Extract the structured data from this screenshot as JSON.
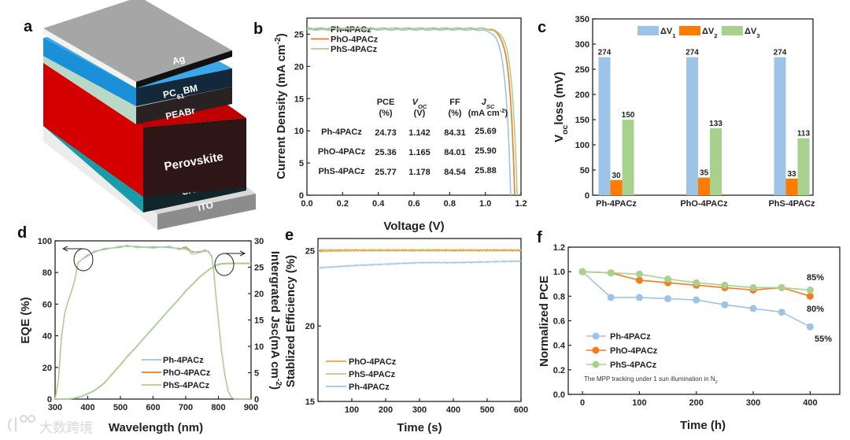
{
  "panel_labels": [
    "a",
    "b",
    "c",
    "d",
    "e",
    "f"
  ],
  "device_stack": {
    "layers": [
      {
        "name": "ITO",
        "color": "#8c8c8c"
      },
      {
        "name": "SAM",
        "color": "#1a9ba8"
      },
      {
        "name": "Perovskite",
        "color": "#d40000"
      },
      {
        "name": "PEABr",
        "color": "#b9d8c8"
      },
      {
        "name": "PC",
        "sub": "61",
        "tail": "BM",
        "color": "#1a90d8"
      },
      {
        "name": "Ag",
        "color": "#a6a6a6"
      }
    ]
  },
  "chart_data": [
    {
      "panel": "b",
      "type": "line",
      "title": "",
      "xlabel": "Voltage (V)",
      "ylabel": {
        "text": "Current Density (mA cm",
        "sup": "-2",
        "close": ")"
      },
      "xlim": [
        0,
        1.2
      ],
      "ylim": [
        0,
        27.5
      ],
      "xticks": [
        "0.0",
        "0.2",
        "0.4",
        "0.6",
        "0.8",
        "1.0",
        "1.2"
      ],
      "yticks": [
        "0",
        "5",
        "10",
        "15",
        "20",
        "25"
      ],
      "legend_position": "top-left",
      "series": [
        {
          "name": "Ph-4PACz",
          "color": "#9dc3e6",
          "voc": 1.142,
          "jsc": 25.69
        },
        {
          "name": "PhO-4PACz",
          "color": "#f07b1c",
          "voc": 1.165,
          "jsc": 25.9
        },
        {
          "name": "PhS-4PACz",
          "color": "#a9d18e",
          "voc": 1.178,
          "jsc": 25.88
        }
      ],
      "table": {
        "headers": [
          {
            "main": "PCE",
            "unit": "(%)"
          },
          {
            "main": "V",
            "sub": "OC",
            "unit": "(V)"
          },
          {
            "main": "FF",
            "unit": "(%)"
          },
          {
            "main": "J",
            "sub": "SC",
            "unit": "(mA cm",
            "unit_sup": "-2",
            "unit_close": ")"
          }
        ],
        "rows": [
          {
            "label": "Ph-4PACz",
            "values": [
              "24.73",
              "1.142",
              "84.31",
              "25.69"
            ]
          },
          {
            "label": "PhO-4PACz",
            "values": [
              "25.36",
              "1.165",
              "84.01",
              "25.90"
            ]
          },
          {
            "label": "PhS-4PACz",
            "values": [
              "25.77",
              "1.178",
              "84.54",
              "25.88"
            ]
          }
        ]
      }
    },
    {
      "panel": "c",
      "type": "bar",
      "title": "",
      "xlabel": "",
      "ylabel": {
        "text": "V",
        "sub": "oc",
        "tail": "loss (mV)"
      },
      "ylim": [
        0,
        350
      ],
      "yticks": [
        "0",
        "50",
        "100",
        "150",
        "200",
        "250",
        "300",
        "350"
      ],
      "categories": [
        "Ph-4PACz",
        "PhO-4PACz",
        "PhS-4PACz"
      ],
      "legend_position": "top-center",
      "series": [
        {
          "name": "ΔV",
          "sub": "1",
          "color": "#9dc3e6",
          "values": [
            274,
            274,
            274
          ],
          "labels": [
            "274",
            "274",
            "274"
          ]
        },
        {
          "name": "ΔV",
          "sub": "2",
          "color": "#ff7c00",
          "values": [
            30,
            35,
            33
          ],
          "labels": [
            "30",
            "35",
            "33"
          ]
        },
        {
          "name": "ΔV",
          "sub": "3",
          "color": "#a9d18e",
          "values": [
            150,
            133,
            113
          ],
          "labels": [
            "150",
            "133",
            "113"
          ]
        }
      ]
    },
    {
      "panel": "d",
      "type": "line",
      "title": "",
      "xlabel": "Wavelength (nm)",
      "ylabel": "EQE (%)",
      "ylabel_right": {
        "text": "Intergrated Jsc(mA cm",
        "sup": "-2",
        "close": ")"
      },
      "xlim": [
        300,
        900
      ],
      "ylim": [
        0,
        100
      ],
      "ylim_right": [
        0,
        30
      ],
      "xticks": [
        "300",
        "400",
        "500",
        "600",
        "700",
        "800",
        "900"
      ],
      "yticks": [
        "0",
        "20",
        "40",
        "60",
        "80",
        "100"
      ],
      "yticks_right": [
        "0",
        "5",
        "10",
        "15",
        "20",
        "25",
        "30"
      ],
      "legend_position": "bottom-center",
      "x": [
        300,
        310,
        320,
        330,
        340,
        350,
        360,
        370,
        380,
        400,
        420,
        450,
        500,
        520,
        550,
        600,
        650,
        680,
        700,
        720,
        740,
        760,
        770,
        780,
        785,
        790,
        800,
        810,
        820,
        830,
        840,
        850,
        900
      ],
      "series": [
        {
          "name": "Ph-4PACz",
          "color": "#9dc3e6",
          "eqe": [
            0,
            12,
            40,
            55,
            62,
            68,
            75,
            86,
            88,
            91,
            93,
            95,
            96,
            97,
            96,
            96,
            96,
            95,
            95,
            93,
            93,
            94,
            93,
            90,
            82,
            70,
            50,
            30,
            15,
            5,
            1,
            0,
            0
          ],
          "jsc_int": [
            0,
            0,
            0,
            0,
            0.05,
            0.1,
            0.2,
            0.35,
            0.5,
            1.0,
            1.6,
            3.0,
            6.5,
            8.0,
            10.0,
            13.5,
            17.0,
            19.0,
            20.5,
            21.7,
            23.0,
            24.0,
            24.5,
            24.9,
            25.1,
            25.3,
            25.5,
            25.6,
            25.65,
            25.7,
            25.7,
            25.7,
            25.7
          ]
        },
        {
          "name": "PhO-4PACz",
          "color": "#f07b1c",
          "eqe": [
            0,
            12,
            40,
            55,
            62,
            68,
            75,
            86,
            88,
            91,
            93,
            95,
            96,
            97,
            96,
            96,
            96,
            95,
            96,
            93,
            93,
            94,
            93,
            90,
            82,
            70,
            50,
            30,
            15,
            5,
            1,
            0,
            0
          ],
          "jsc_int": [
            0,
            0,
            0,
            0,
            0.05,
            0.1,
            0.2,
            0.35,
            0.5,
            1.0,
            1.6,
            3.0,
            6.5,
            8.0,
            10.0,
            13.5,
            17.0,
            19.0,
            20.5,
            21.7,
            23.0,
            24.0,
            24.5,
            24.9,
            25.1,
            25.3,
            25.55,
            25.65,
            25.7,
            25.75,
            25.75,
            25.75,
            25.75
          ]
        },
        {
          "name": "PhS-4PACz",
          "color": "#a9d18e",
          "eqe": [
            0,
            12,
            40,
            55,
            62,
            68,
            75,
            86,
            88,
            91,
            93,
            95,
            96,
            97,
            96,
            96,
            96,
            95,
            95,
            92,
            92,
            94,
            93,
            90,
            82,
            70,
            50,
            30,
            15,
            5,
            1,
            0,
            0
          ],
          "jsc_int": [
            0,
            0,
            0,
            0,
            0.05,
            0.1,
            0.2,
            0.35,
            0.5,
            1.0,
            1.6,
            3.0,
            6.5,
            8.0,
            10.0,
            13.5,
            17.0,
            19.0,
            20.5,
            21.7,
            23.0,
            24.0,
            24.5,
            24.9,
            25.1,
            25.3,
            25.5,
            25.6,
            25.65,
            25.7,
            25.7,
            25.7,
            25.7
          ]
        }
      ]
    },
    {
      "panel": "e",
      "type": "line",
      "title": "",
      "xlabel": "Time (s)",
      "ylabel": "Stablized Efficiency (%)",
      "xlim": [
        0,
        600
      ],
      "ylim": [
        15,
        25.8
      ],
      "xticks": [
        "100",
        "200",
        "300",
        "400",
        "500",
        "600"
      ],
      "yticks": [
        "15",
        "20",
        "25"
      ],
      "legend_position": "bottom-left",
      "x": [
        0,
        100,
        200,
        300,
        400,
        500,
        600
      ],
      "series": [
        {
          "name": "PhO-4PACz",
          "color": "#f5a030",
          "values": [
            24.95,
            25.0,
            25.0,
            25.0,
            25.0,
            25.0,
            25.0
          ]
        },
        {
          "name": "PhS-4PACz",
          "color": "#a9d18e",
          "values": [
            25.05,
            25.05,
            25.05,
            25.05,
            25.05,
            25.05,
            25.05
          ]
        },
        {
          "name": "Ph-4PACz",
          "color": "#9dc3e6",
          "values": [
            23.85,
            24.0,
            24.1,
            24.2,
            24.2,
            24.25,
            24.3
          ]
        }
      ]
    },
    {
      "panel": "f",
      "type": "line",
      "title": "",
      "xlabel": "Time (h)",
      "ylabel": "Normalized PCE",
      "xlim": [
        -25,
        452
      ],
      "ylim": [
        0,
        1.2
      ],
      "xticks": [
        "0",
        "100",
        "200",
        "300",
        "400"
      ],
      "yticks": [
        "0.0",
        "0.2",
        "0.4",
        "0.6",
        "0.8",
        "1.0",
        "1.2"
      ],
      "legend_position": "bottom-left",
      "note": {
        "text": "The MPP tracking under 1 sun illumination in N",
        "sub": "2"
      },
      "x": [
        0,
        50,
        100,
        150,
        200,
        250,
        300,
        350,
        400
      ],
      "series": [
        {
          "name": "Ph-4PACz",
          "color": "#9dc3e6",
          "values": [
            1.0,
            0.79,
            0.79,
            0.78,
            0.77,
            0.73,
            0.7,
            0.67,
            0.55
          ],
          "end_label": "55%"
        },
        {
          "name": "PhO-4PACz",
          "color": "#f47b20",
          "values": [
            1.0,
            0.99,
            0.93,
            0.91,
            0.89,
            0.87,
            0.85,
            0.87,
            0.8
          ],
          "end_label": "80%"
        },
        {
          "name": "PhS-4PACz",
          "color": "#a9d18e",
          "values": [
            1.0,
            0.99,
            0.98,
            0.94,
            0.91,
            0.89,
            0.87,
            0.87,
            0.85
          ],
          "end_label": "85%"
        }
      ]
    }
  ],
  "watermark": "大数跨境"
}
